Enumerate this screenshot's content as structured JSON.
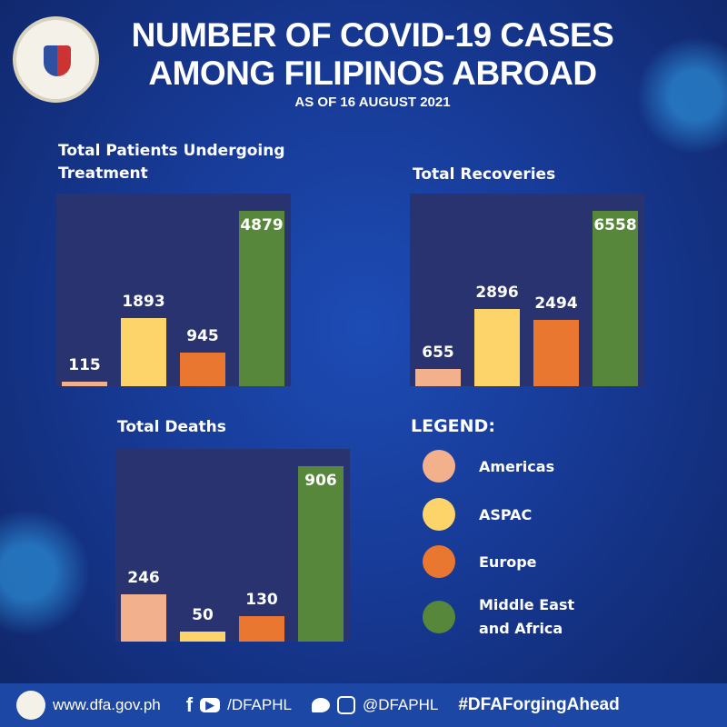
{
  "header": {
    "title_line1": "NUMBER OF  COVID-19 CASES",
    "title_line2": "AMONG FILIPINOS ABROAD",
    "subtitle": "AS OF 16 AUGUST 2021"
  },
  "colors": {
    "Americas": "#f2b08d",
    "ASPAC": "#fdd46a",
    "Europe": "#e9772f",
    "Middle East and Africa": "#56873a",
    "panel": "#28336f"
  },
  "chart_data": [
    {
      "type": "bar",
      "title": "Total Patients Undergoing Treatment",
      "categories": [
        "Americas",
        "ASPAC",
        "Europe",
        "Middle East and Africa"
      ],
      "values": [
        115,
        1893,
        945,
        4879
      ],
      "labels": [
        "115",
        "1893",
        "945",
        "4879"
      ]
    },
    {
      "type": "bar",
      "title": "Total Recoveries",
      "categories": [
        "Americas",
        "ASPAC",
        "Europe",
        "Middle East and Africa"
      ],
      "values": [
        655,
        2896,
        2494,
        6558
      ],
      "labels": [
        "655",
        "2896",
        "2494",
        "6558"
      ]
    },
    {
      "type": "bar",
      "title": "Total Deaths",
      "categories": [
        "Americas",
        "ASPAC",
        "Europe",
        "Middle East and Africa"
      ],
      "values": [
        246,
        50,
        130,
        906
      ],
      "labels": [
        "246",
        "50",
        "130",
        "906"
      ]
    }
  ],
  "legend": {
    "title": "LEGEND:",
    "items": [
      "Americas",
      "ASPAC",
      "Europe",
      "Middle East",
      "and Africa"
    ]
  },
  "footer": {
    "website": "www.dfa.gov.ph",
    "social1": "/DFAPHL",
    "social2": "@DFAPHL",
    "hashtag": "#DFAForgingAhead"
  }
}
